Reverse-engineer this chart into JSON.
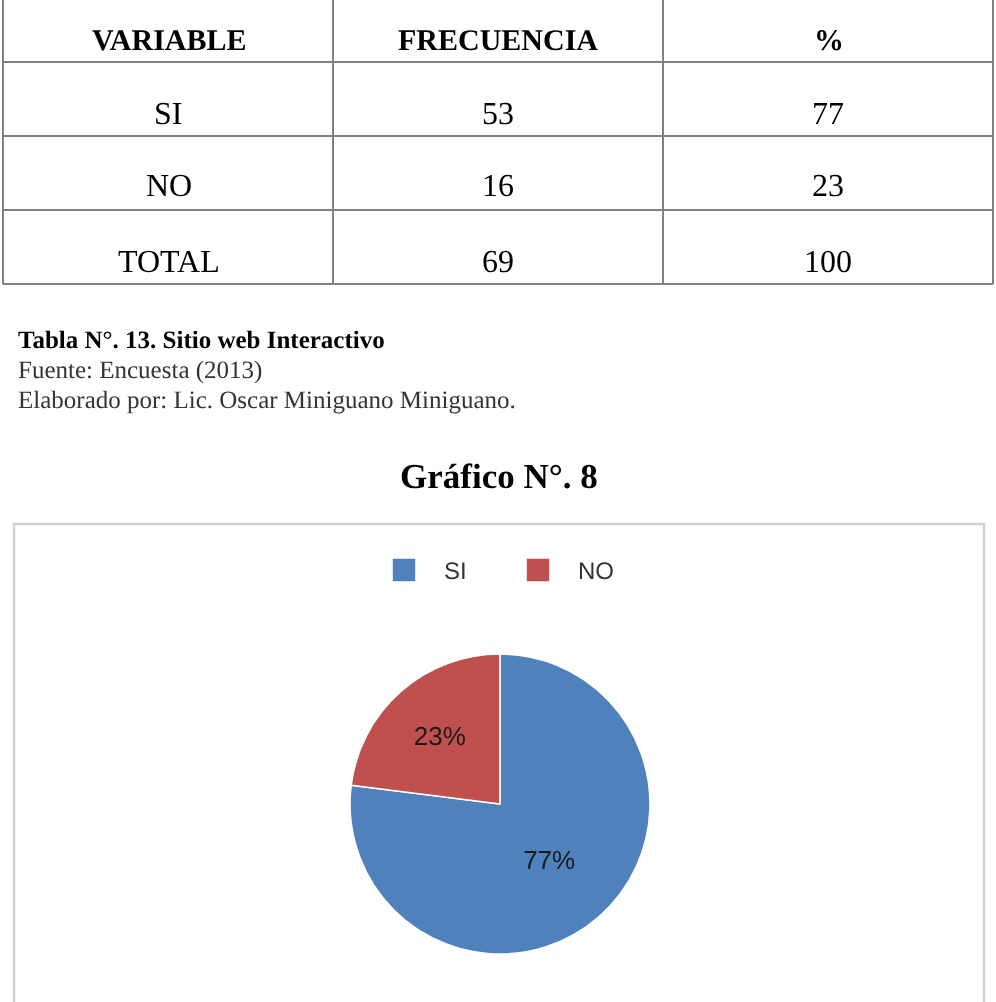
{
  "chart_data": [
    {
      "type": "other",
      "title": "Tabla N°. 13. Sitio web Interactivo",
      "ylabel": "VARIABLE",
      "categories": [
        "FRECUENCIA",
        "%"
      ],
      "y_categories": [
        "SI",
        "NO",
        "TOTAL"
      ],
      "cell_labels": [
        [
          "53",
          "77"
        ],
        [
          "16",
          "23"
        ],
        [
          "69",
          "100"
        ]
      ],
      "annotations": [
        "Fuente: Encuesta (2013)",
        "Elaborado por: Lic. Oscar Miniguano Miniguano."
      ]
    },
    {
      "type": "pie",
      "title": "Gráfico N°. 8",
      "categories": [
        "SI",
        "NO"
      ],
      "values": [
        77,
        23
      ],
      "colors": [
        "#4f81bd",
        "#c0504d"
      ],
      "value_labels": [
        "77%",
        "23%"
      ],
      "legend": "top"
    }
  ]
}
